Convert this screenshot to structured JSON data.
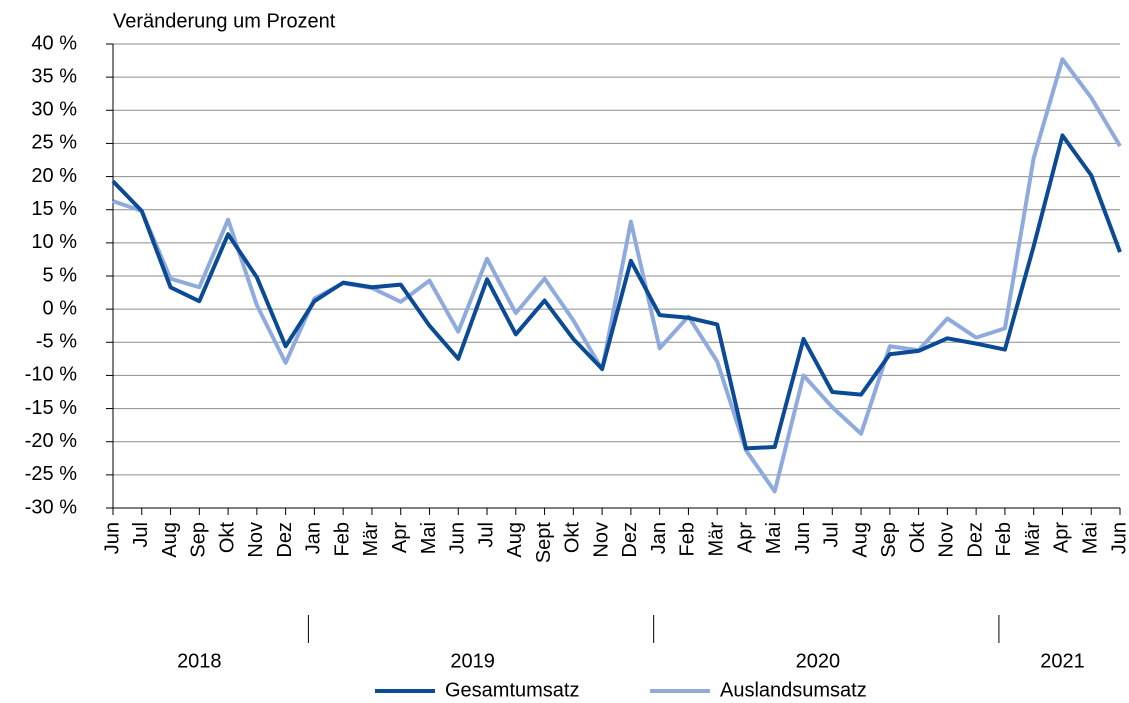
{
  "chart_data": {
    "type": "line",
    "title": "Veränderung um Prozent",
    "groups": [
      {
        "label": "2018",
        "months": [
          "Jun",
          "Jul",
          "Aug",
          "Sep",
          "Okt",
          "Nov",
          "Dez"
        ]
      },
      {
        "label": "2019",
        "months": [
          "Jan",
          "Feb",
          "Mär",
          "Apr",
          "Mai",
          "Jun",
          "Jul",
          "Aug",
          "Sept",
          "Okt",
          "Nov",
          "Dez"
        ]
      },
      {
        "label": "2020",
        "months": [
          "Jan",
          "Feb",
          "Mär",
          "Apr",
          "Mai",
          "Jun",
          "Jul",
          "Aug",
          "Sep",
          "Okt",
          "Nov",
          "Dez"
        ]
      },
      {
        "label": "2021",
        "months": [
          "Feb",
          "Mär",
          "Apr",
          "Mai",
          "Jun"
        ]
      }
    ],
    "series": [
      {
        "name": "Gesamtumsatz",
        "color": "#0b4a94",
        "values": [
          19.3,
          14.8,
          3.3,
          1.2,
          11.3,
          4.8,
          -5.6,
          1.2,
          4.0,
          3.3,
          3.7,
          -2.5,
          -7.5,
          4.5,
          -3.8,
          1.3,
          -4.5,
          -9.0,
          7.3,
          -0.9,
          -1.3,
          -2.3,
          -21.0,
          -20.8,
          -4.5,
          -12.5,
          -12.9,
          -6.8,
          -6.3,
          -4.4,
          -5.2,
          -6.1,
          9.5,
          26.2,
          20.2,
          8.6
        ]
      },
      {
        "name": "Auslandsumsatz",
        "color": "#8faadc",
        "values": [
          16.3,
          14.8,
          4.6,
          3.3,
          13.5,
          0.6,
          -8.1,
          1.6,
          3.9,
          3.2,
          1.1,
          4.3,
          -3.4,
          7.6,
          -0.6,
          4.6,
          -1.7,
          -9.1,
          13.2,
          -5.9,
          -1.1,
          -7.9,
          -21.3,
          -27.5,
          -10.0,
          -14.8,
          -18.8,
          -5.6,
          -6.2,
          -1.4,
          -4.3,
          -2.9,
          22.8,
          37.7,
          31.9,
          24.6
        ]
      }
    ],
    "ylim": [
      -30,
      40
    ],
    "yticks": [
      {
        "value": 40,
        "label": "40 %"
      },
      {
        "value": 35,
        "label": "35 %"
      },
      {
        "value": 30,
        "label": "30 %"
      },
      {
        "value": 25,
        "label": "25 %"
      },
      {
        "value": 20,
        "label": "20 %"
      },
      {
        "value": 15,
        "label": "15 %"
      },
      {
        "value": 10,
        "label": "10 %"
      },
      {
        "value": 5,
        "label": "5 %"
      },
      {
        "value": 0,
        "label": "0 %"
      },
      {
        "value": -5,
        "label": "-5 %"
      },
      {
        "value": -10,
        "label": "-10 %"
      },
      {
        "value": -15,
        "label": "-15 %"
      },
      {
        "value": -20,
        "label": "-20 %"
      },
      {
        "value": -25,
        "label": "-25 %"
      },
      {
        "value": -30,
        "label": "-30 %"
      }
    ],
    "grid": true,
    "legend": "bottom"
  }
}
